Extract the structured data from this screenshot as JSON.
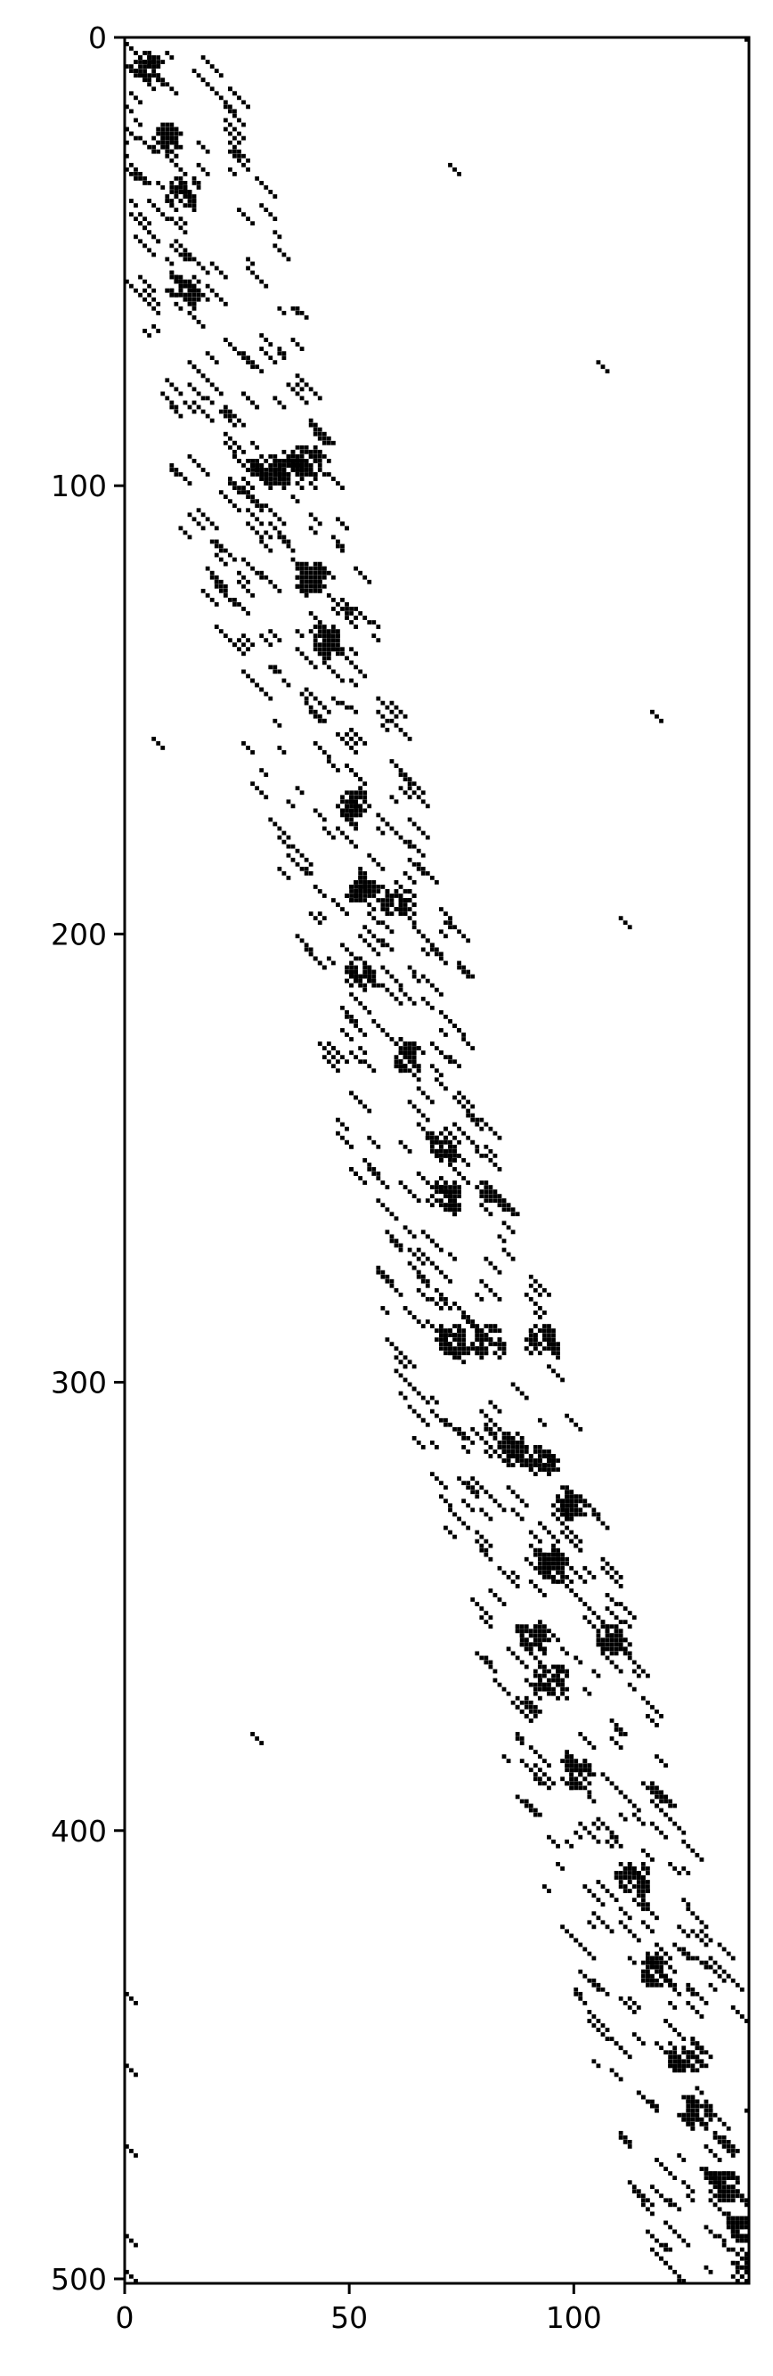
{
  "chart_data": {
    "type": "heatmap",
    "subtype": "sparsity-pattern",
    "title": "",
    "xlabel": "",
    "ylabel": "",
    "xlim": [
      0,
      139
    ],
    "ylim": [
      501,
      0
    ],
    "grid": false,
    "xticks": [
      0,
      50,
      100
    ],
    "yticks": [
      0,
      100,
      200,
      300,
      400,
      500
    ],
    "xtick_labels": [
      "0",
      "50",
      "100"
    ],
    "ytick_labels": [
      "0",
      "100",
      "200",
      "300",
      "400",
      "500"
    ],
    "colors": {
      "filled": "#000000",
      "empty": "#ffffff",
      "axes": "#000000"
    },
    "band_centerline": [
      [
        0,
        3
      ],
      [
        20,
        9
      ],
      [
        40,
        14
      ],
      [
        60,
        20
      ],
      [
        80,
        24
      ],
      [
        100,
        28
      ],
      [
        120,
        33
      ],
      [
        140,
        40
      ],
      [
        160,
        44
      ],
      [
        180,
        50
      ],
      [
        200,
        56
      ],
      [
        220,
        60
      ],
      [
        240,
        64
      ],
      [
        260,
        68
      ],
      [
        280,
        74
      ],
      [
        300,
        78
      ],
      [
        320,
        84
      ],
      [
        340,
        90
      ],
      [
        360,
        96
      ],
      [
        380,
        101
      ],
      [
        400,
        107
      ],
      [
        420,
        114
      ],
      [
        440,
        118
      ],
      [
        460,
        124
      ],
      [
        480,
        130
      ],
      [
        500,
        136
      ]
    ],
    "band_halfwidth": 14,
    "dense_clusters": [
      [
        5,
        6
      ],
      [
        8,
        22
      ],
      [
        12,
        34
      ],
      [
        12,
        56
      ],
      [
        30,
        96
      ],
      [
        36,
        96
      ],
      [
        40,
        94
      ],
      [
        40,
        120
      ],
      [
        44,
        134
      ],
      [
        50,
        170
      ],
      [
        52,
        188
      ],
      [
        60,
        192
      ],
      [
        52,
        208
      ],
      [
        62,
        226
      ],
      [
        70,
        246
      ],
      [
        70,
        258
      ],
      [
        72,
        290
      ],
      [
        80,
        290
      ],
      [
        92,
        290
      ],
      [
        86,
        314
      ],
      [
        92,
        316
      ],
      [
        98,
        326
      ],
      [
        94,
        340
      ],
      [
        90,
        356
      ],
      [
        108,
        356
      ],
      [
        94,
        366
      ],
      [
        100,
        386
      ],
      [
        112,
        410
      ],
      [
        118,
        430
      ],
      [
        124,
        450
      ],
      [
        126,
        462
      ],
      [
        132,
        478
      ],
      [
        136,
        488
      ],
      [
        138,
        496
      ]
    ],
    "outliers": [
      [
        72,
        28
      ],
      [
        105,
        72
      ],
      [
        117,
        150
      ],
      [
        6,
        156
      ],
      [
        110,
        196
      ],
      [
        28,
        378
      ],
      [
        0,
        436
      ],
      [
        0,
        452
      ],
      [
        0,
        470
      ],
      [
        0,
        490
      ],
      [
        0,
        498
      ],
      [
        138,
        0
      ]
    ]
  }
}
